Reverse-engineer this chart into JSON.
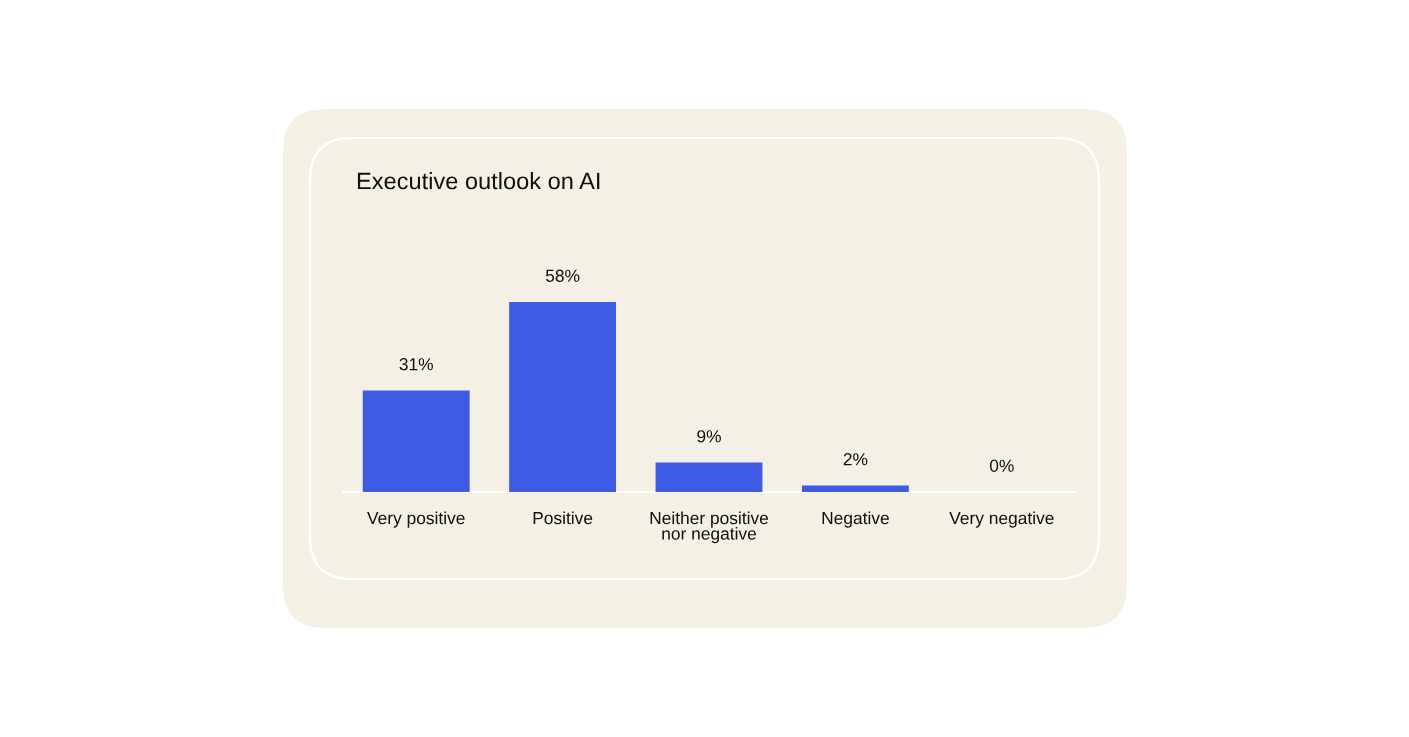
{
  "chart_data": {
    "type": "bar",
    "title": "Executive outlook on AI",
    "categories": [
      "Very positive",
      "Positive",
      "Neither positive\nnor negative",
      "Negative",
      "Very negative"
    ],
    "values": [
      31,
      58,
      9,
      2,
      0
    ],
    "value_labels": [
      "31%",
      "58%",
      "9%",
      "2%",
      "0%"
    ],
    "color": "#3f5ae3",
    "grid": false,
    "legend": false
  }
}
